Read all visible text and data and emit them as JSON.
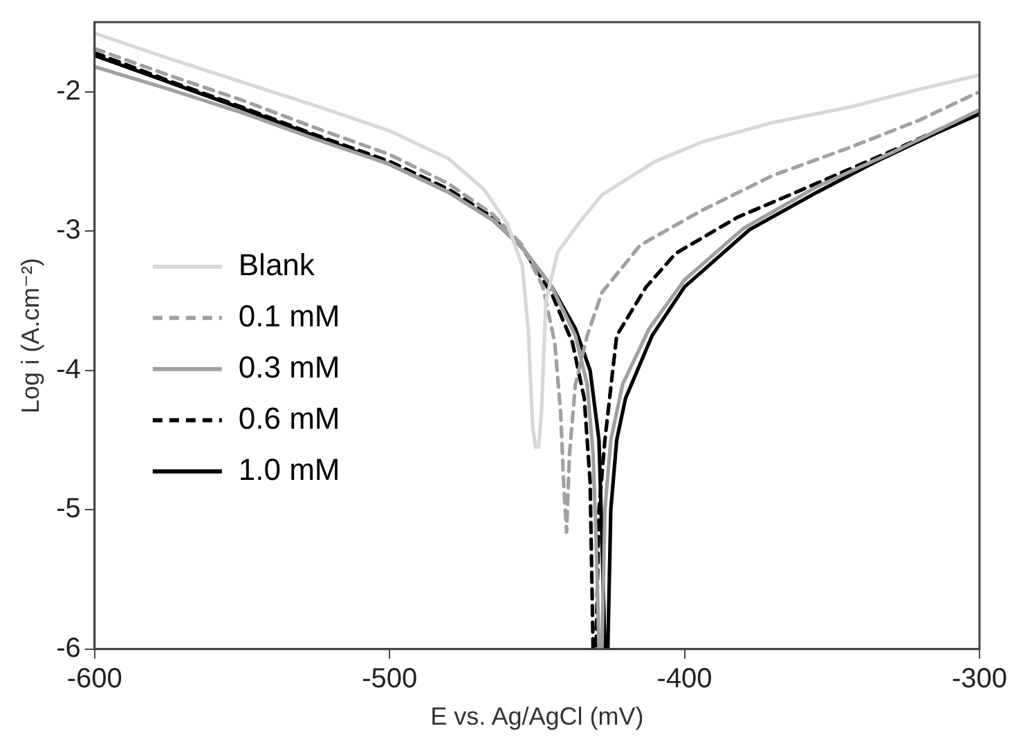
{
  "chart_data": {
    "type": "line",
    "xlabel": "E vs. Ag/AgCl (mV)",
    "ylabel": "Log i (A.cm⁻²)",
    "xlim": [
      -600,
      -300
    ],
    "xticks": [
      -600,
      -500,
      -400,
      -300
    ],
    "ylim": [
      -6,
      -1.5
    ],
    "yticks": [
      -6,
      -5,
      -4,
      -3,
      -2
    ],
    "grid": false,
    "legend": "left",
    "marker": "none",
    "series": [
      {
        "name": "Blank",
        "color": "#d8d8d8",
        "line_style": "solid",
        "x": [
          -600,
          -575,
          -550,
          -525,
          -500,
          -480,
          -468,
          -460,
          -455,
          -453,
          -451.5,
          -450.5,
          -449.5,
          -448.5,
          -447,
          -443,
          -435,
          -428,
          -410,
          -394,
          -370,
          -344,
          -320,
          -300
        ],
        "values": [
          -1.58,
          -1.76,
          -1.93,
          -2.1,
          -2.28,
          -2.48,
          -2.7,
          -2.95,
          -3.25,
          -3.7,
          -4.4,
          -4.55,
          -4.55,
          -4.3,
          -3.5,
          -3.15,
          -2.92,
          -2.74,
          -2.5,
          -2.36,
          -2.22,
          -2.11,
          -1.98,
          -1.88
        ]
      },
      {
        "name": "0.1 mM",
        "color": "#a0a0a0",
        "line_style": "dashed",
        "x": [
          -600,
          -575,
          -550,
          -525,
          -500,
          -480,
          -465,
          -455,
          -448,
          -444,
          -442,
          -441,
          -440,
          -439,
          -437,
          -433,
          -428,
          -415,
          -394,
          -370,
          -344,
          -320,
          -300
        ],
        "values": [
          -1.69,
          -1.88,
          -2.06,
          -2.26,
          -2.45,
          -2.66,
          -2.88,
          -3.1,
          -3.4,
          -3.8,
          -4.3,
          -4.8,
          -5.16,
          -4.6,
          -4.1,
          -3.75,
          -3.44,
          -3.1,
          -2.85,
          -2.6,
          -2.4,
          -2.2,
          -2.0
        ]
      },
      {
        "name": "0.3 mM",
        "color": "#a0a0a0",
        "line_style": "solid",
        "x": [
          -600,
          -575,
          -550,
          -525,
          -500,
          -480,
          -465,
          -455,
          -445,
          -437,
          -433,
          -431,
          -430,
          -429,
          -428,
          -427,
          -425,
          -421,
          -412,
          -400,
          -380,
          -355,
          -330,
          -300
        ],
        "values": [
          -1.82,
          -1.98,
          -2.15,
          -2.34,
          -2.52,
          -2.72,
          -2.92,
          -3.12,
          -3.4,
          -3.75,
          -4.1,
          -4.6,
          -5.2,
          -6,
          -6,
          -5,
          -4.5,
          -4.1,
          -3.7,
          -3.35,
          -2.98,
          -2.68,
          -2.44,
          -2.13
        ]
      },
      {
        "name": "0.6 mM",
        "color": "#000000",
        "line_style": "dashed",
        "x": [
          -600,
          -575,
          -550,
          -525,
          -500,
          -480,
          -465,
          -455,
          -445,
          -438,
          -434,
          -432,
          -431,
          -430,
          -429,
          -427,
          -423,
          -413,
          -403,
          -382,
          -361,
          -327,
          -300
        ],
        "values": [
          -1.72,
          -1.92,
          -2.11,
          -2.31,
          -2.5,
          -2.7,
          -2.9,
          -3.12,
          -3.45,
          -3.8,
          -4.2,
          -4.8,
          -6,
          -6,
          -5,
          -4.5,
          -3.75,
          -3.4,
          -3.16,
          -2.9,
          -2.71,
          -2.4,
          -2.14
        ]
      },
      {
        "name": "1.0 mM",
        "color": "#000000",
        "line_style": "solid",
        "x": [
          -600,
          -575,
          -550,
          -525,
          -500,
          -480,
          -465,
          -455,
          -445,
          -437,
          -432,
          -429,
          -428,
          -427,
          -426,
          -425,
          -423,
          -420,
          -411,
          -400,
          -378,
          -355,
          -335,
          -315,
          -300
        ],
        "values": [
          -1.74,
          -1.93,
          -2.12,
          -2.32,
          -2.52,
          -2.72,
          -2.92,
          -3.12,
          -3.4,
          -3.7,
          -4.0,
          -4.5,
          -5.2,
          -6,
          -6,
          -5.0,
          -4.5,
          -4.2,
          -3.75,
          -3.4,
          -2.99,
          -2.72,
          -2.5,
          -2.3,
          -2.16
        ]
      }
    ]
  }
}
